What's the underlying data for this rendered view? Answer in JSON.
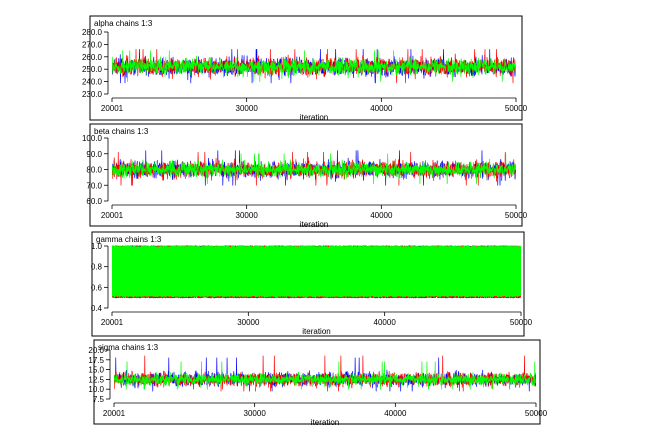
{
  "chart_data": [
    {
      "type": "line",
      "title": "alpha chains 1:3",
      "xlabel": "iteration",
      "ylabel": "",
      "xlim": [
        20001,
        50000
      ],
      "ylim": [
        230,
        280
      ],
      "x_ticks": [
        20001,
        30000,
        40000,
        50000
      ],
      "x_tick_labels": [
        "20001",
        "30000",
        "40000",
        "50000"
      ],
      "y_ticks": [
        230,
        240,
        250,
        260,
        270,
        280
      ],
      "y_tick_labels": [
        "230.0",
        "240.0",
        "250.0",
        "260.0",
        "270.0",
        "280.0"
      ],
      "grid": false,
      "series": [
        {
          "color": "#0000ff",
          "mean": 252,
          "spread": 7.5,
          "min": 239,
          "max": 266
        },
        {
          "color": "#ff0000",
          "mean": 252,
          "spread": 7.5,
          "min": 239,
          "max": 266
        },
        {
          "color": "#00ff00",
          "mean": 252,
          "spread": 7.0,
          "min": 240,
          "max": 265
        }
      ]
    },
    {
      "type": "line",
      "title": "beta chains 1:3",
      "xlabel": "iteration",
      "ylabel": "",
      "xlim": [
        20001,
        50000
      ],
      "ylim": [
        60,
        100
      ],
      "x_ticks": [
        20001,
        30000,
        40000,
        50000
      ],
      "x_tick_labels": [
        "20001",
        "30000",
        "40000",
        "50000"
      ],
      "y_ticks": [
        60,
        70,
        80,
        90,
        100
      ],
      "y_tick_labels": [
        "60.0",
        "70.0",
        "80.0",
        "90.0",
        "100.0"
      ],
      "grid": false,
      "series": [
        {
          "color": "#0000ff",
          "mean": 80,
          "spread": 5.5,
          "min": 70,
          "max": 92
        },
        {
          "color": "#ff0000",
          "mean": 80,
          "spread": 5.5,
          "min": 70,
          "max": 91
        },
        {
          "color": "#00ff00",
          "mean": 80,
          "spread": 5.0,
          "min": 71,
          "max": 90
        }
      ]
    },
    {
      "type": "line",
      "title": "gamma chains 1:3",
      "xlabel": "iteration",
      "ylabel": "",
      "xlim": [
        20001,
        50000
      ],
      "ylim": [
        0.4,
        1.0
      ],
      "x_ticks": [
        20001,
        30000,
        40000,
        50000
      ],
      "x_tick_labels": [
        "20001",
        "30000",
        "40000",
        "50000"
      ],
      "y_ticks": [
        0.4,
        0.6,
        0.8,
        1.0
      ],
      "y_tick_labels": [
        "0.4",
        "0.6",
        "0.8",
        "1.0"
      ],
      "grid": false,
      "series": [
        {
          "color": "#0000ff",
          "min": 0.5,
          "max": 1.0
        },
        {
          "color": "#ff0000",
          "min": 0.5,
          "max": 1.0
        },
        {
          "color": "#00ff00",
          "min": 0.51,
          "max": 1.0
        }
      ]
    },
    {
      "type": "line",
      "title": "sigma chains 1:3",
      "xlabel": "iteration",
      "ylabel": "",
      "xlim": [
        20001,
        50000
      ],
      "ylim": [
        7.5,
        20
      ],
      "x_ticks": [
        20001,
        30000,
        40000,
        50000
      ],
      "x_tick_labels": [
        "20001",
        "30000",
        "40000",
        "50000"
      ],
      "y_ticks": [
        7.5,
        10,
        12.5,
        15,
        17.5,
        20
      ],
      "y_tick_labels": [
        "7.5",
        "10.0",
        "12.5",
        "15.0",
        "17.5",
        "20.0"
      ],
      "grid": false,
      "series": [
        {
          "color": "#0000ff",
          "mean": 12.5,
          "spread": 1.8,
          "min": 9.5,
          "max": 18
        },
        {
          "color": "#ff0000",
          "mean": 12.5,
          "spread": 1.8,
          "min": 9.5,
          "max": 18.5
        },
        {
          "color": "#00ff00",
          "mean": 12.5,
          "spread": 1.6,
          "min": 10,
          "max": 17
        }
      ]
    }
  ]
}
